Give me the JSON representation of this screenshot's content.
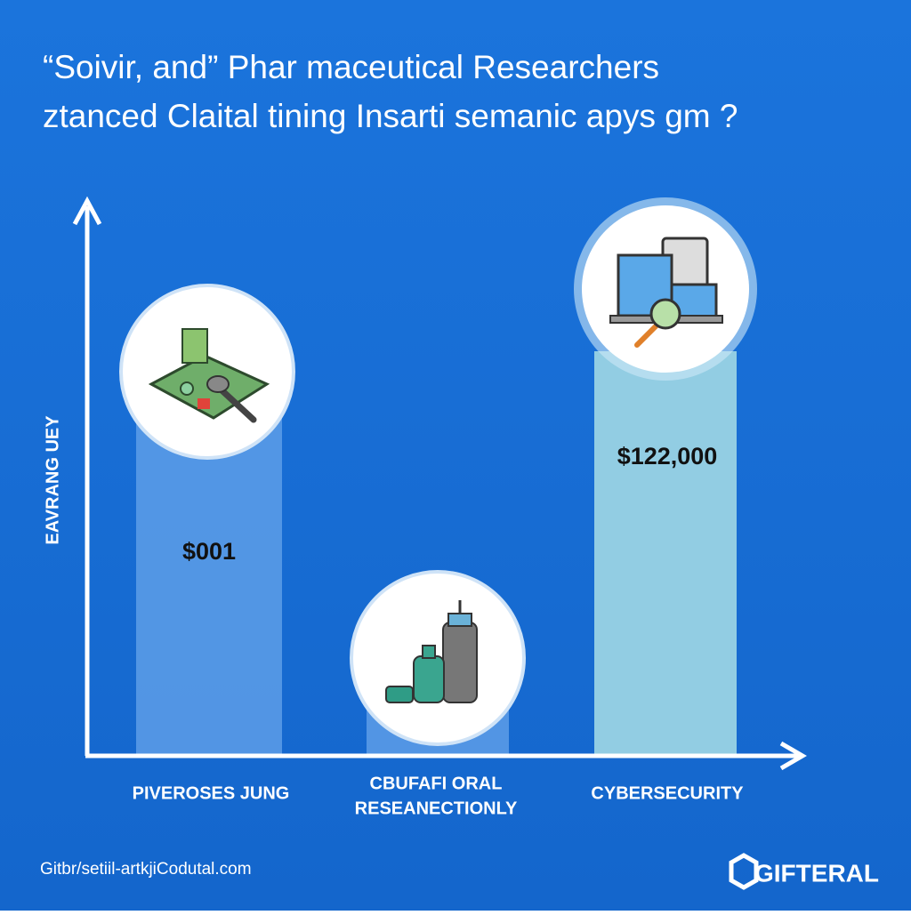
{
  "header": {
    "title_lines": [
      "“Soivir, and” Phar maceutical Researchers",
      "ztanced Claital tining Insarti semanic apys gm ?"
    ]
  },
  "axis": {
    "y_label": "EAVRANG UEY"
  },
  "bars": [
    {
      "category_lines": [
        "PIVEROSES JUNG"
      ],
      "value_label": "$001"
    },
    {
      "category_lines": [
        "CBUFAFI ORAL",
        "RESEANECTIONLY"
      ]
    },
    {
      "category_lines": [
        "CYBERSECURITY"
      ],
      "value_label": "$122,000"
    }
  ],
  "footer": {
    "url": "Gitbr/setiil-artkjiCodutal.com",
    "brand": "GIFTERAL"
  }
}
